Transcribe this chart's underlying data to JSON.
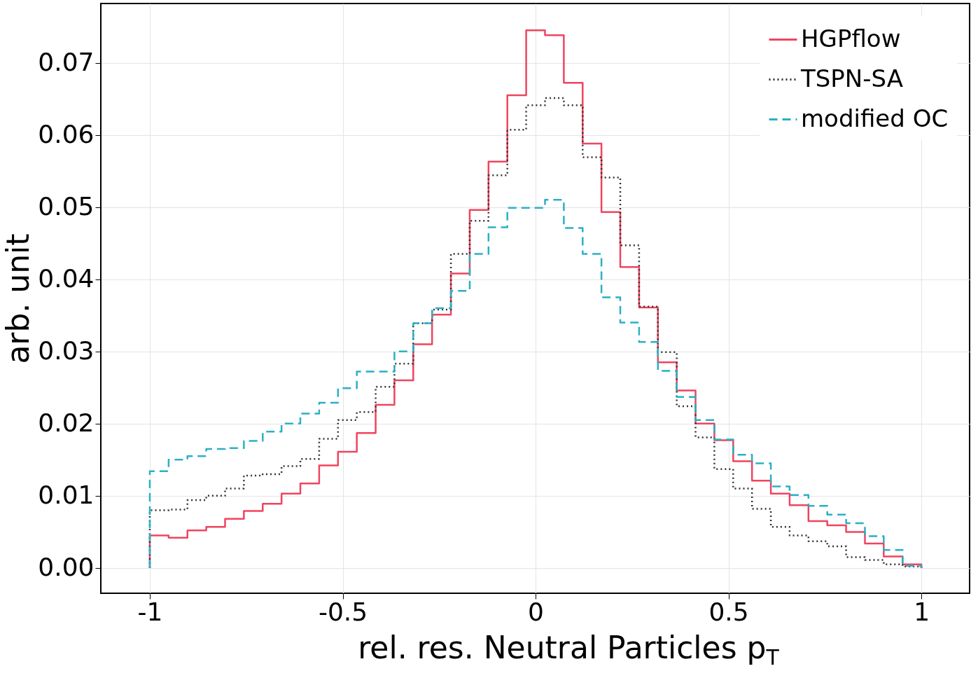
{
  "chart_data": {
    "type": "histogram",
    "xlabel": "rel. res. Neutral Particles p$_{T}$",
    "ylabel": "arb. unit",
    "bins": [
      -1,
      -0.9512,
      -0.9024,
      -0.8537,
      -0.8049,
      -0.7561,
      -0.7073,
      -0.6585,
      -0.6098,
      -0.561,
      -0.5122,
      -0.4634,
      -0.4146,
      -0.3659,
      -0.3171,
      -0.2683,
      -0.2195,
      -0.1707,
      -0.122,
      -0.0732,
      -0.0244,
      0.0244,
      0.0732,
      0.122,
      0.1707,
      0.2195,
      0.2683,
      0.3171,
      0.3659,
      0.4146,
      0.4634,
      0.5122,
      0.561,
      0.6098,
      0.6585,
      0.7073,
      0.7561,
      0.8049,
      0.8537,
      0.9024,
      0.9512,
      1
    ],
    "series": [
      {
        "name": "HGPflow",
        "color": "#f0445e",
        "line_style": "solid",
        "values": [
          0.0045,
          0.0042,
          0.0052,
          0.0057,
          0.0068,
          0.0079,
          0.0089,
          0.0103,
          0.0117,
          0.0142,
          0.0161,
          0.0187,
          0.0226,
          0.026,
          0.031,
          0.0351,
          0.0408,
          0.0496,
          0.0563,
          0.0655,
          0.0745,
          0.0738,
          0.0672,
          0.0588,
          0.0493,
          0.0417,
          0.0361,
          0.0285,
          0.0246,
          0.02,
          0.0177,
          0.0148,
          0.0121,
          0.0103,
          0.0087,
          0.0065,
          0.0059,
          0.005,
          0.0034,
          0.0016,
          0.0005
        ]
      },
      {
        "name": "TSPN-SA",
        "color": "#333333",
        "line_style": "dotted",
        "values": [
          0.008,
          0.0081,
          0.0094,
          0.01,
          0.011,
          0.0128,
          0.013,
          0.0141,
          0.0151,
          0.0179,
          0.0205,
          0.0216,
          0.0251,
          0.0283,
          0.0339,
          0.0358,
          0.0435,
          0.0481,
          0.0544,
          0.0607,
          0.0641,
          0.0651,
          0.0641,
          0.0569,
          0.0541,
          0.0447,
          0.0362,
          0.0299,
          0.0224,
          0.0181,
          0.0137,
          0.011,
          0.0082,
          0.0057,
          0.0045,
          0.0037,
          0.003,
          0.0015,
          0.0011,
          0.0005,
          0.0002
        ]
      },
      {
        "name": "modified OC",
        "color": "#2ab0c5",
        "line_style": "dashed",
        "values": [
          0.0134,
          0.015,
          0.0155,
          0.0165,
          0.0166,
          0.0176,
          0.0189,
          0.02,
          0.0214,
          0.0229,
          0.0249,
          0.0272,
          0.0272,
          0.03,
          0.0339,
          0.036,
          0.0384,
          0.0435,
          0.0472,
          0.0499,
          0.0499,
          0.051,
          0.0471,
          0.0435,
          0.0375,
          0.034,
          0.0313,
          0.0273,
          0.0237,
          0.0205,
          0.0178,
          0.0157,
          0.0145,
          0.0113,
          0.0101,
          0.0086,
          0.0074,
          0.0062,
          0.0044,
          0.0025,
          0.0003
        ]
      }
    ],
    "xlim": [
      -1.127,
      1.125
    ],
    "ylim": [
      -0.0035,
      0.0782
    ],
    "xticks": [
      -1,
      -0.5,
      0,
      0.5,
      1
    ],
    "yticks": [
      {
        "value": 0,
        "label": "0.00"
      },
      {
        "value": 0.01,
        "label": "0.01"
      },
      {
        "value": 0.02,
        "label": "0.02"
      },
      {
        "value": 0.03,
        "label": "0.03"
      },
      {
        "value": 0.04,
        "label": "0.04"
      },
      {
        "value": 0.05,
        "label": "0.05"
      },
      {
        "value": 0.06,
        "label": "0.06"
      },
      {
        "value": 0.07,
        "label": "0.07"
      }
    ],
    "grid": true,
    "legend": "top right"
  }
}
